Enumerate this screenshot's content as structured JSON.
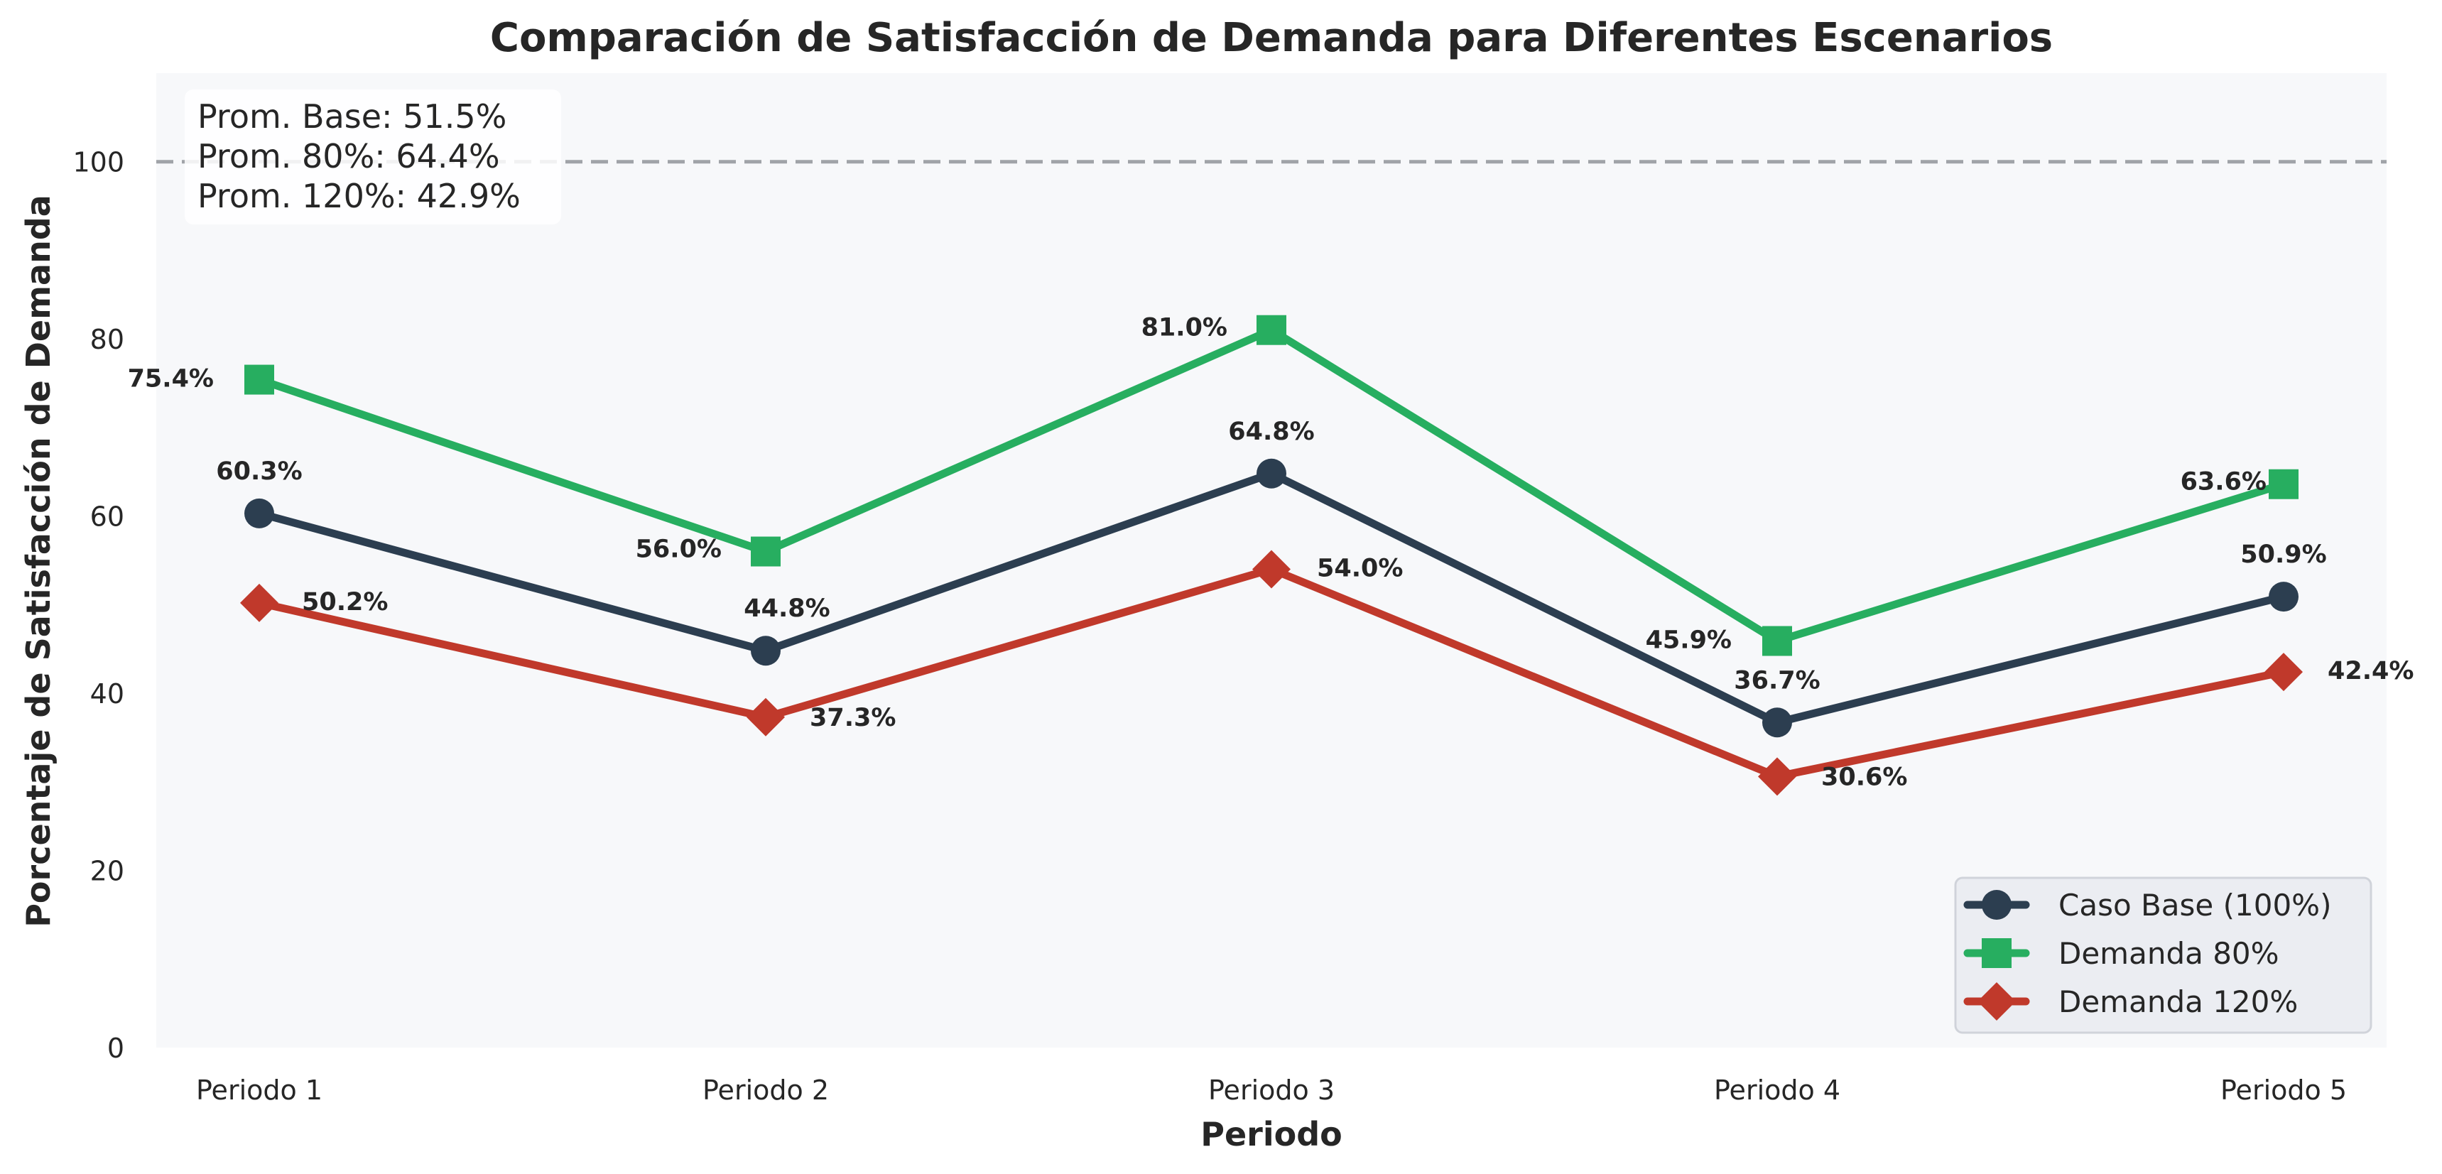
{
  "chart_data": {
    "type": "line",
    "title": "Comparación de Satisfacción de Demanda para Diferentes Escenarios",
    "xlabel": "Periodo",
    "ylabel": "Porcentaje de Satisfacción de Demanda",
    "categories": [
      "Periodo 1",
      "Periodo 2",
      "Periodo 3",
      "Periodo 4",
      "Periodo 5"
    ],
    "ylim": [
      0,
      110
    ],
    "yticks": [
      0,
      20,
      40,
      60,
      80,
      100
    ],
    "grid": false,
    "reference_line": {
      "y": 100,
      "style": "dashed",
      "color": "#a0a3a8"
    },
    "series": [
      {
        "name": "Caso Base (100%)",
        "values": [
          60.3,
          44.8,
          64.8,
          36.7,
          50.9
        ],
        "labels": [
          "60.3%",
          "44.8%",
          "64.8%",
          "36.7%",
          "50.9%"
        ],
        "color": "#2c3e50",
        "marker": "circle"
      },
      {
        "name": "Demanda 80%",
        "values": [
          75.4,
          56.0,
          81.0,
          45.9,
          63.6
        ],
        "labels": [
          "75.4%",
          "56.0%",
          "81.0%",
          "45.9%",
          "63.6%"
        ],
        "color": "#27ae60",
        "marker": "square"
      },
      {
        "name": "Demanda 120%",
        "values": [
          50.2,
          37.3,
          54.0,
          30.6,
          42.4
        ],
        "labels": [
          "50.2%",
          "37.3%",
          "54.0%",
          "30.6%",
          "42.4%"
        ],
        "color": "#c0392b",
        "marker": "diamond"
      }
    ],
    "stats_box": [
      "Prom. Base: 51.5%",
      "Prom. 80%: 64.4%",
      "Prom. 120%: 42.9%"
    ],
    "legend_position": "lower-right",
    "plot_background": "#f7f8fa"
  }
}
